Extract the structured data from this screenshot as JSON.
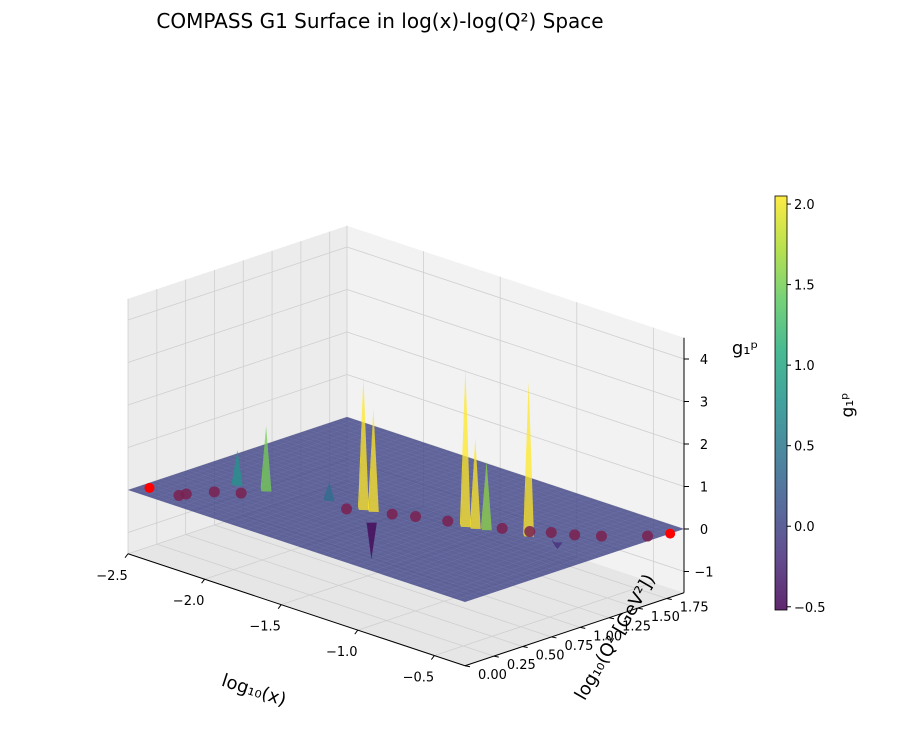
{
  "chart_data": {
    "type": "surface3d",
    "title": "COMPASS G1 Surface in log(x)-log(Q²) Space",
    "xlabel": "log₁₀(x)",
    "ylabel": "log₁₀(Q² [GeV²])",
    "zlabel": "g₁ᵖ",
    "colorbar_label": "g₁ᵖ",
    "colormap": "viridis",
    "xlim": [
      -2.5,
      -0.3
    ],
    "ylim": [
      0.0,
      1.9
    ],
    "zlim": [
      -1.5,
      4.5
    ],
    "x_ticks": [
      -2.5,
      -2.0,
      -1.5,
      -1.0,
      -0.5
    ],
    "x_tick_labels": [
      "−2.5",
      "−2.0",
      "−1.5",
      "−1.0",
      "−0.5"
    ],
    "y_ticks": [
      0.0,
      0.25,
      0.5,
      0.75,
      1.0,
      1.25,
      1.5,
      1.75
    ],
    "y_tick_labels": [
      "0.00",
      "0.25",
      "0.50",
      "0.75",
      "1.00",
      "1.25",
      "1.50",
      "1.75"
    ],
    "z_ticks": [
      -1,
      0,
      1,
      2,
      3,
      4
    ],
    "z_tick_labels": [
      "−1",
      "0",
      "1",
      "2",
      "3",
      "4"
    ],
    "colorbar_range": [
      -0.52,
      2.05
    ],
    "colorbar_ticks": [
      -0.5,
      0.0,
      0.5,
      1.0,
      1.5,
      2.0
    ],
    "colorbar_tick_labels": [
      "−0.5",
      "0.0",
      "0.5",
      "1.0",
      "1.5",
      "2.0"
    ],
    "surface_base_value": 0.0,
    "spikes": [
      {
        "x": -2.2,
        "y": 0.55,
        "z": 0.8
      },
      {
        "x": -2.05,
        "y": 0.6,
        "z": 1.5
      },
      {
        "x": -1.75,
        "y": 0.75,
        "z": 0.4
      },
      {
        "x": -1.55,
        "y": 0.78,
        "z": 3.1
      },
      {
        "x": -1.5,
        "y": 0.8,
        "z": 2.4
      },
      {
        "x": -1.4,
        "y": 0.65,
        "z": -0.9
      },
      {
        "x": -1.05,
        "y": 1.0,
        "z": 3.7
      },
      {
        "x": -1.0,
        "y": 1.02,
        "z": 2.1
      },
      {
        "x": -0.95,
        "y": 1.05,
        "z": 1.6
      },
      {
        "x": -0.75,
        "y": 1.15,
        "z": 3.6
      },
      {
        "x": -0.6,
        "y": 1.2,
        "z": -0.2
      }
    ],
    "data_points": [
      {
        "x": -2.28,
        "y": 0.15,
        "z": 0.0
      },
      {
        "x": -2.27,
        "y": 0.2,
        "z": 0.0
      },
      {
        "x": -2.2,
        "y": 0.35,
        "z": 0.0
      },
      {
        "x": -2.1,
        "y": 0.45,
        "z": 0.0
      },
      {
        "x": -1.6,
        "y": 0.7,
        "z": 0.0
      },
      {
        "x": -1.4,
        "y": 0.83,
        "z": 0.0
      },
      {
        "x": -1.3,
        "y": 0.9,
        "z": 0.0
      },
      {
        "x": -1.15,
        "y": 0.98,
        "z": 0.0
      },
      {
        "x": -0.9,
        "y": 1.12,
        "z": 0.0
      },
      {
        "x": -0.78,
        "y": 1.2,
        "z": 0.0
      },
      {
        "x": -0.7,
        "y": 1.28,
        "z": 0.0
      },
      {
        "x": -0.6,
        "y": 1.35,
        "z": 0.0
      },
      {
        "x": -0.5,
        "y": 1.45,
        "z": 0.0
      },
      {
        "x": -0.35,
        "y": 1.65,
        "z": 0.0
      }
    ],
    "highlight_points": [
      {
        "x": -2.45,
        "y": 0.12,
        "z": 0.0
      },
      {
        "x": -0.3,
        "y": 1.78,
        "z": 0.0
      }
    ],
    "colors": {
      "pane": "#f2f2f2",
      "grid": "#cfcfcf",
      "marker": "#7a2150",
      "highlight": "#ff0000"
    }
  }
}
